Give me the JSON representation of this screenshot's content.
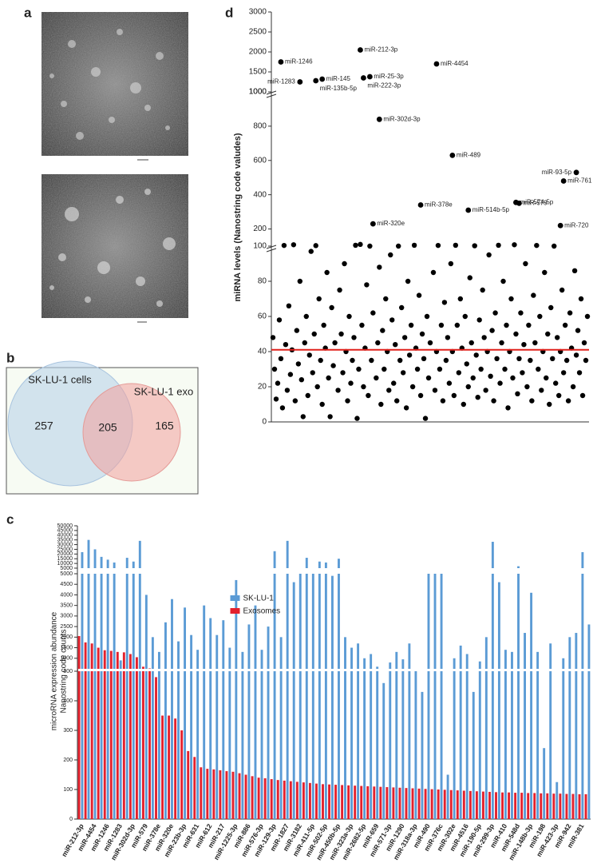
{
  "panels": {
    "a": "a",
    "b": "b",
    "c": "c",
    "d": "d"
  },
  "venn": {
    "left": {
      "name": "SK-LU-1 cells",
      "count": 257
    },
    "right": {
      "name": "SK-LU-1 exo",
      "count": 165
    },
    "overlap": 205
  },
  "chart_data": [
    {
      "type": "scatter",
      "ylabel": "miRNA levels (Nanostring code valudes)",
      "color": "#000000",
      "xlim": [
        0,
        100
      ],
      "segments": [
        {
          "ylim": [
            0,
            100
          ],
          "yticks": [
            0,
            20,
            40,
            60,
            80,
            100
          ]
        },
        {
          "ylim": [
            100,
            1000
          ],
          "yticks": [
            200,
            400,
            600,
            800,
            1000
          ]
        },
        {
          "ylim": [
            1000,
            3000
          ],
          "yticks": [
            1000,
            1500,
            2000,
            2500,
            3000
          ]
        }
      ],
      "threshold": 41,
      "threshold_color": "#e0201b",
      "x": [
        0.5,
        1,
        1.5,
        2,
        2.5,
        3,
        3.5,
        4,
        4.5,
        5,
        5.5,
        6,
        6.5,
        7,
        7.5,
        8,
        8.5,
        9,
        9.5,
        10,
        10.5,
        11,
        11.5,
        12,
        12.5,
        13,
        13.5,
        14,
        14.5,
        15,
        15.5,
        16,
        16.5,
        17,
        17.5,
        18,
        18.5,
        19,
        19.5,
        20,
        21,
        21.5,
        22,
        22.5,
        23,
        23.5,
        24,
        24.5,
        25,
        25.5,
        26,
        26.5,
        27,
        27.5,
        28,
        28.5,
        29,
        29.5,
        30,
        30.5,
        31,
        31.5,
        32,
        33,
        33.5,
        34,
        34.5,
        35,
        35.5,
        36,
        36.5,
        37,
        37.5,
        38,
        38.5,
        39,
        39.5,
        40,
        40.5,
        41,
        41.5,
        42,
        42.5,
        43,
        43.5,
        44,
        44.5,
        45,
        45.5,
        46,
        46.5,
        47,
        47.5,
        48,
        48.5,
        49,
        49.5,
        50,
        51,
        51.5,
        52,
        52.5,
        53,
        53.5,
        54,
        54.5,
        55,
        55.5,
        56,
        56.5,
        57,
        57.5,
        58,
        58.5,
        59,
        59.5,
        60,
        60.5,
        61,
        61.5,
        62,
        62.5,
        63,
        63.5,
        64,
        64.5,
        65,
        65.5,
        66,
        66.5,
        67,
        67.5,
        68,
        68.5,
        69,
        69.5,
        70,
        70.5,
        71,
        71.5,
        72,
        72.5,
        73,
        73.5,
        74,
        74.5,
        75,
        75.5,
        76,
        76.5,
        77,
        77.5,
        78,
        78.5,
        79,
        79.5,
        80,
        80.5,
        81,
        81.5,
        82,
        82.5,
        83,
        83.5,
        84,
        84.5,
        85,
        85.5,
        86,
        86.5,
        87,
        87.5,
        88,
        88.5,
        89,
        89.5,
        90,
        90.5,
        91,
        91.5,
        92,
        92.5,
        93,
        93.5,
        94,
        94.5,
        95,
        95.5,
        96,
        96.5,
        97,
        97.5,
        98,
        98.5,
        99,
        99.5
      ],
      "values": [
        48,
        30,
        13,
        22,
        58,
        36,
        8,
        104,
        44,
        18,
        66,
        27,
        41,
        108,
        12,
        52,
        33,
        80,
        24,
        3,
        45,
        60,
        15,
        38,
        97,
        28,
        50,
        103,
        20,
        70,
        35,
        10,
        55,
        42,
        85,
        25,
        3,
        65,
        32,
        45,
        18,
        75,
        50,
        28,
        90,
        40,
        12,
        60,
        22,
        35,
        48,
        105,
        2,
        30,
        110,
        55,
        20,
        42,
        78,
        15,
        100,
        35,
        62,
        25,
        45,
        88,
        10,
        52,
        30,
        70,
        40,
        18,
        95,
        58,
        22,
        44,
        12,
        100,
        35,
        65,
        28,
        48,
        8,
        80,
        38,
        55,
        20,
        105,
        42,
        30,
        72,
        15,
        50,
        36,
        2,
        60,
        25,
        45,
        85,
        18,
        40,
        104,
        30,
        55,
        12,
        68,
        35,
        48,
        22,
        90,
        40,
        15,
        105,
        55,
        28,
        70,
        42,
        10,
        60,
        33,
        20,
        82,
        45,
        25,
        102,
        38,
        14,
        58,
        30,
        75,
        48,
        18,
        40,
        95,
        26,
        52,
        12,
        62,
        36,
        105,
        22,
        45,
        80,
        30,
        55,
        8,
        40,
        70,
        25,
        108,
        50,
        16,
        36,
        62,
        28,
        44,
        90,
        20,
        55,
        35,
        12,
        72,
        45,
        104,
        30,
        60,
        18,
        40,
        85,
        25,
        50,
        10,
        65,
        36,
        100,
        22,
        48,
        15,
        40,
        75,
        28,
        55,
        35,
        12,
        62,
        42,
        20,
        86,
        38,
        52,
        28,
        70,
        15,
        45,
        35,
        60
      ],
      "labeled": {
        "labels": [
          "miR-1246",
          "miR-1283",
          "miR-145",
          "miR-135b-5p",
          "miR-212-3p",
          "miR-25-3p",
          "miR-222-3p",
          "miR-4454",
          "miR-302d-3p",
          "miR-489",
          "miR-93-5p",
          "miR-761",
          "miR-574-5p",
          "miR-579",
          "miR-378e",
          "miR-514b-5p",
          "miR-320e",
          "miR-720"
        ],
        "x": [
          3,
          9,
          16,
          14,
          28,
          31,
          29,
          52,
          34,
          57,
          96,
          92,
          77,
          78,
          47,
          62,
          32,
          91
        ],
        "values": [
          1750,
          1250,
          1320,
          1280,
          2050,
          1380,
          1350,
          1700,
          840,
          630,
          530,
          480,
          355,
          350,
          340,
          310,
          230,
          220
        ]
      }
    },
    {
      "type": "bar",
      "ylabel": [
        "microRNA expression abundance",
        "Nanostring code counts"
      ],
      "legend": "upper center",
      "segments": [
        {
          "ylim": [
            0,
            500
          ],
          "yticks": [
            0,
            100,
            200,
            300,
            400,
            500
          ]
        },
        {
          "ylim": [
            500,
            5000
          ],
          "yticks": [
            1000,
            1500,
            2000,
            2500,
            3000,
            3500,
            4000,
            4500,
            5000
          ]
        },
        {
          "ylim": [
            5000,
            50000
          ],
          "yticks": [
            5000,
            10000,
            15000,
            20000,
            25000,
            30000,
            35000,
            40000,
            45000,
            50000
          ]
        }
      ],
      "categories": [
        "miR-212-3p",
        null,
        "miR-4454",
        null,
        "miR-1246",
        null,
        "miR-1283",
        null,
        "miR-302d-3p",
        null,
        "miR-579",
        null,
        "miR-378e",
        null,
        "miR-320e",
        null,
        "miR-23b-3p",
        null,
        "miR-631",
        null,
        "miR-612",
        null,
        "miR-217",
        null,
        "miR-1225-3p",
        null,
        "miR-886",
        null,
        "miR-576-3p",
        null,
        "miR-129-3p",
        null,
        "miR-1827",
        null,
        "miR-3182",
        null,
        "miR-411-5p",
        null,
        "miR-502-5p",
        null,
        "miR-450b-5p",
        null,
        "miR-323a-3p",
        null,
        "miR-2682-5p",
        null,
        "miR-659",
        null,
        "miR-571-3p",
        null,
        "miR-1290",
        null,
        "miR-318a-3p",
        null,
        "miR-490",
        null,
        "miR-376c",
        null,
        "miR-302e",
        null,
        "miR-4516",
        null,
        "miR-190-5p",
        null,
        "miR-299-3p",
        null,
        "miR-410",
        null,
        "miR-548d",
        null,
        "miR-148b-3p",
        null,
        "miR-198",
        null,
        "miR-423-3p",
        null,
        "miR-942",
        null,
        "miR-381",
        null
      ],
      "series": [
        {
          "name": "SK-LU-1",
          "color": "#5b9bd5",
          "values": [
            22000,
            35000,
            25000,
            17000,
            14000,
            11000,
            900,
            16000,
            12000,
            34000,
            4000,
            2000,
            1300,
            2700,
            3800,
            1800,
            3400,
            2100,
            1400,
            3500,
            2900,
            2100,
            2800,
            1500,
            4700,
            1300,
            2600,
            3500,
            1400,
            2500,
            23000,
            2000,
            34000,
            4600,
            5000,
            16000,
            5000,
            12000,
            11000,
            4900,
            15000,
            2000,
            1500,
            1700,
            1000,
            1200,
            600,
            460,
            800,
            1300,
            950,
            1700,
            500,
            430,
            5000,
            5000,
            5000,
            150,
            1000,
            1600,
            1200,
            430,
            850,
            2000,
            33000,
            4600,
            1400,
            1300,
            7000,
            2200,
            4100,
            1300,
            240,
            1700,
            125,
            1000,
            2000,
            2200,
            22000,
            2600
          ]
        },
        {
          "name": "Exosomes",
          "color": "#e3212d",
          "values": [
            2050,
            1750,
            1700,
            1500,
            1380,
            1350,
            1300,
            1280,
            1200,
            1050,
            600,
            520,
            480,
            350,
            350,
            340,
            300,
            230,
            210,
            175,
            170,
            168,
            165,
            162,
            160,
            155,
            150,
            145,
            140,
            138,
            135,
            132,
            130,
            128,
            126,
            124,
            122,
            120,
            118,
            117,
            116,
            115,
            114,
            113,
            112,
            111,
            110,
            109,
            108,
            107,
            106,
            105,
            104,
            103,
            102,
            101,
            100,
            99,
            98,
            97,
            96,
            95,
            94,
            93,
            92,
            91,
            90,
            90,
            89,
            89,
            88,
            88,
            87,
            87,
            86,
            86,
            85,
            85,
            84,
            84
          ]
        }
      ]
    }
  ]
}
